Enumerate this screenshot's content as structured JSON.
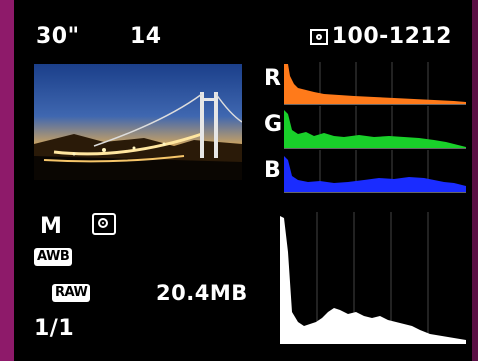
{
  "exposure": {
    "shutter": "30\"",
    "aperture": "14"
  },
  "file": {
    "number": "100-1212",
    "size": "20.4MB"
  },
  "shooting": {
    "mode": "M",
    "white_balance": "AWB",
    "quality": "RAW"
  },
  "playback": {
    "position": "1/1"
  },
  "histogram": {
    "labels": {
      "r": "R",
      "g": "G",
      "b": "B"
    }
  },
  "colors": {
    "red": "#ff7a1a",
    "green": "#19d02a",
    "blue": "#1a2cff",
    "luminance": "#ffffff"
  },
  "icons": {
    "metering": "evaluative-metering-icon",
    "file_number": "folder-file-icon"
  }
}
